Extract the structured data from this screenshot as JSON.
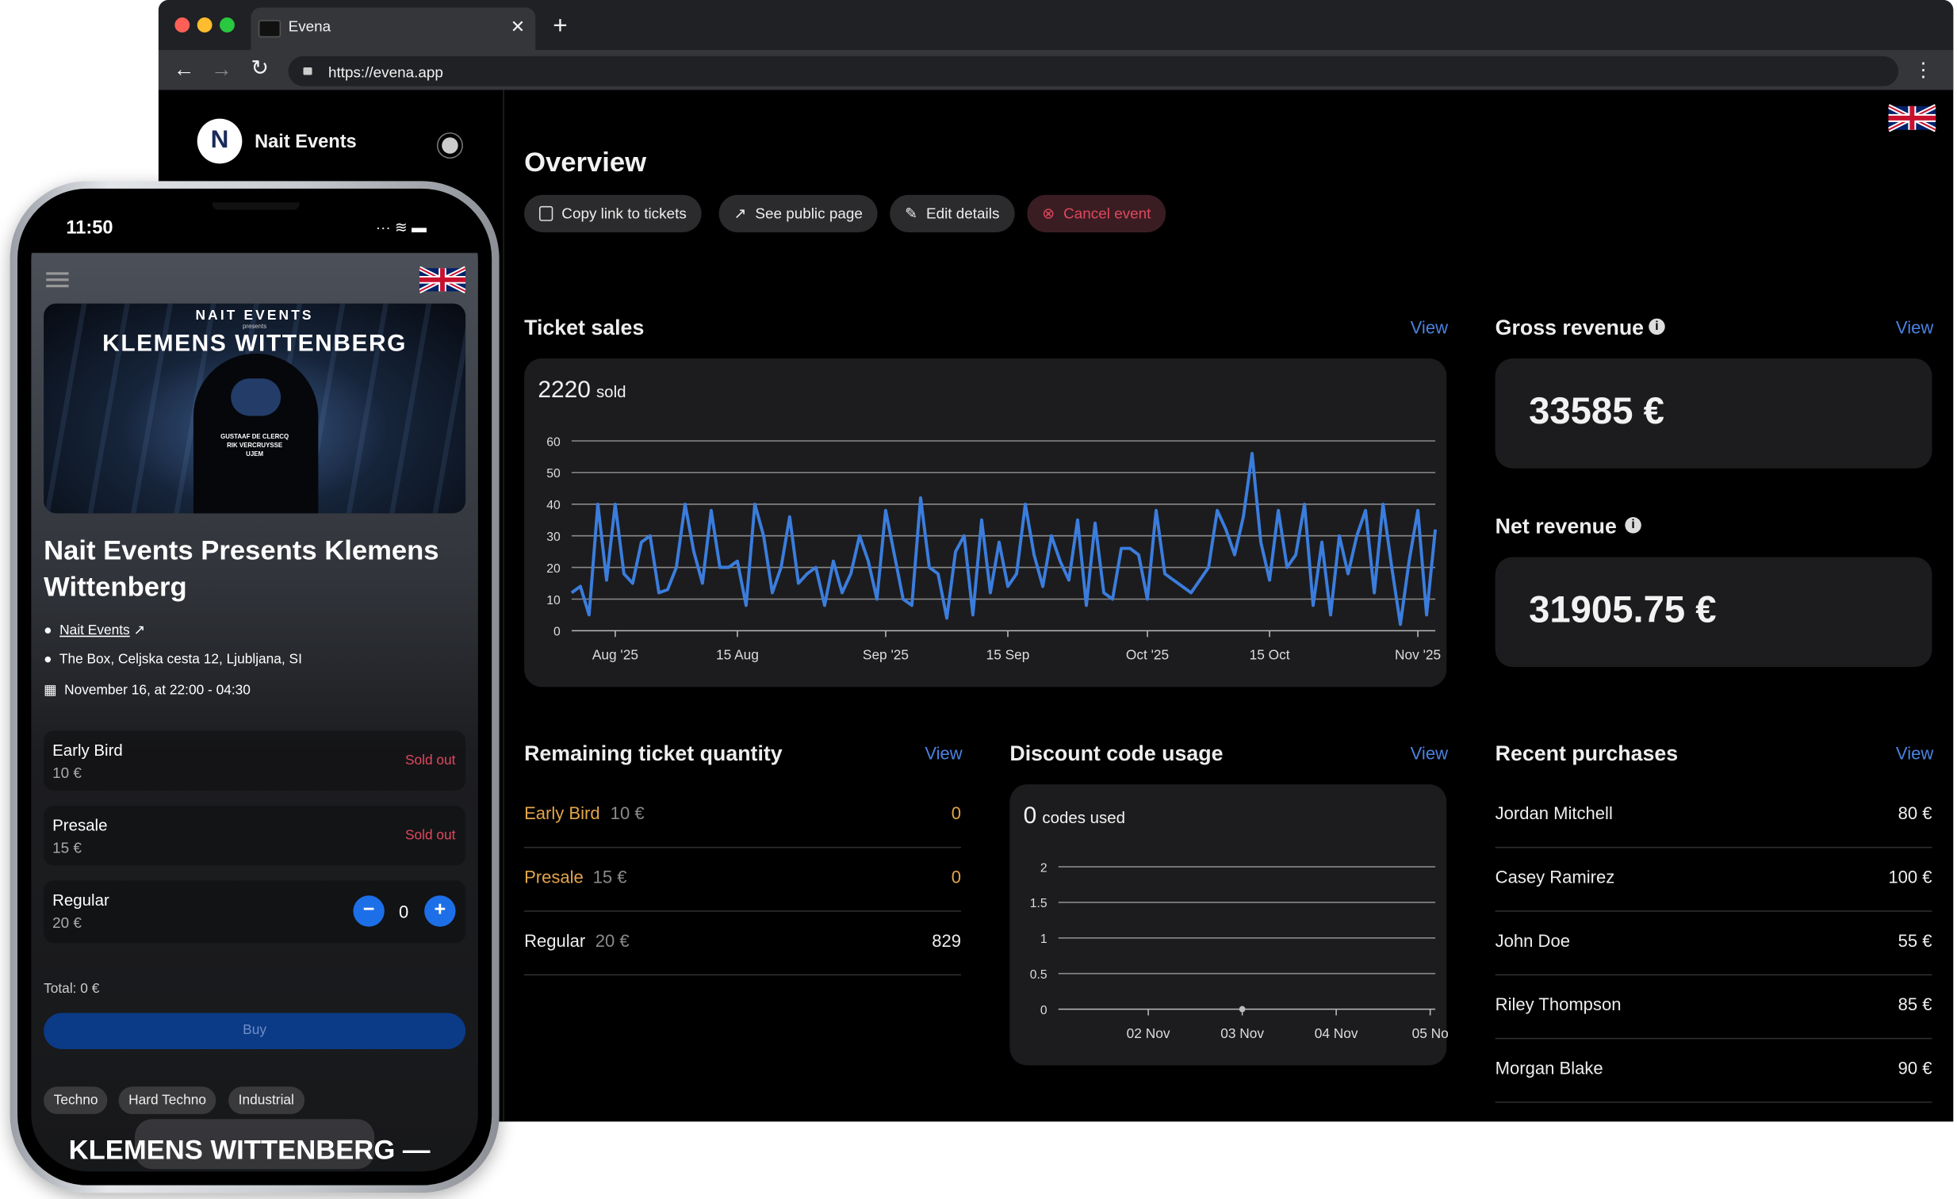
{
  "browser": {
    "tab_title": "Evena",
    "url": "https://evena.app"
  },
  "sidebar": {
    "org_name": "Nait Events"
  },
  "overview": {
    "title": "Overview",
    "actions": [
      "Copy link to tickets",
      "See public page",
      "Edit details",
      "Cancel event"
    ]
  },
  "chart_data": [
    {
      "type": "line",
      "title": "Ticket sales",
      "link": "View",
      "summary_value": 2220,
      "summary_label": "sold",
      "x": [
        "2025-07-27",
        "2025-07-28",
        "2025-07-29",
        "2025-07-30",
        "2025-07-31",
        "2025-08-01",
        "2025-08-02",
        "2025-08-03",
        "2025-08-04",
        "2025-08-05",
        "2025-08-06",
        "2025-08-07",
        "2025-08-08",
        "2025-08-09",
        "2025-08-10",
        "2025-08-11",
        "2025-08-12",
        "2025-08-13",
        "2025-08-14",
        "2025-08-15",
        "2025-08-16",
        "2025-08-17",
        "2025-08-18",
        "2025-08-19",
        "2025-08-20",
        "2025-08-21",
        "2025-08-22",
        "2025-08-23",
        "2025-08-24",
        "2025-08-25",
        "2025-08-26",
        "2025-08-27",
        "2025-08-28",
        "2025-08-29",
        "2025-08-30",
        "2025-08-31",
        "2025-09-01",
        "2025-09-02",
        "2025-09-03",
        "2025-09-04",
        "2025-09-05",
        "2025-09-06",
        "2025-09-07",
        "2025-09-08",
        "2025-09-09",
        "2025-09-10",
        "2025-09-11",
        "2025-09-12",
        "2025-09-13",
        "2025-09-14",
        "2025-09-15",
        "2025-09-16",
        "2025-09-17",
        "2025-09-18",
        "2025-09-19",
        "2025-09-20",
        "2025-09-21",
        "2025-09-22",
        "2025-09-23",
        "2025-09-24",
        "2025-09-25",
        "2025-09-26",
        "2025-09-27",
        "2025-09-28",
        "2025-09-29",
        "2025-09-30",
        "2025-10-01",
        "2025-10-02",
        "2025-10-03",
        "2025-10-04",
        "2025-10-05",
        "2025-10-06",
        "2025-10-07",
        "2025-10-08",
        "2025-10-09",
        "2025-10-10",
        "2025-10-11",
        "2025-10-12",
        "2025-10-13",
        "2025-10-14",
        "2025-10-15",
        "2025-10-16",
        "2025-10-17",
        "2025-10-18",
        "2025-10-19",
        "2025-10-20",
        "2025-10-21",
        "2025-10-22",
        "2025-10-23",
        "2025-10-24",
        "2025-10-25",
        "2025-10-26",
        "2025-10-27",
        "2025-10-28",
        "2025-10-29",
        "2025-10-30",
        "2025-10-31",
        "2025-11-01",
        "2025-11-02",
        "2025-11-03"
      ],
      "series": [
        {
          "color": "#3b7ddd",
          "values": [
            12,
            14,
            5,
            40,
            16,
            40,
            18,
            15,
            28,
            30,
            12,
            13,
            20,
            40,
            25,
            15,
            38,
            20,
            20,
            22,
            8,
            40,
            30,
            12,
            20,
            36,
            15,
            18,
            20,
            8,
            22,
            12,
            18,
            30,
            22,
            10,
            38,
            24,
            10,
            8,
            42,
            20,
            18,
            4,
            25,
            30,
            5,
            35,
            12,
            28,
            14,
            18,
            40,
            24,
            14,
            30,
            22,
            16,
            35,
            8,
            34,
            12,
            10,
            26,
            26,
            24,
            10,
            38,
            18,
            16,
            14,
            12,
            16,
            20,
            38,
            32,
            24,
            36,
            56,
            28,
            16,
            38,
            20,
            24,
            40,
            8,
            28,
            5,
            30,
            18,
            30,
            38,
            12,
            40,
            20,
            2,
            22,
            38,
            5,
            32
          ]
        }
      ],
      "xlim": [
        "2025-07-27",
        "2025-11-03"
      ],
      "xticks": [
        {
          "value": "2025-08-01",
          "label": "Aug '25"
        },
        {
          "value": "2025-08-15",
          "label": "15 Aug"
        },
        {
          "value": "2025-09-01",
          "label": "Sep '25"
        },
        {
          "value": "2025-09-15",
          "label": "15 Sep"
        },
        {
          "value": "2025-10-01",
          "label": "Oct '25"
        },
        {
          "value": "2025-10-15",
          "label": "15 Oct"
        },
        {
          "value": "2025-11-01",
          "label": "Nov '25"
        }
      ],
      "ylim": [
        0,
        60
      ],
      "yticks": [
        0,
        10,
        20,
        30,
        40,
        50,
        60
      ],
      "grid": true
    },
    {
      "type": "line",
      "title": "Discount code usage",
      "link": "View",
      "summary_value": 0,
      "summary_label": "codes used",
      "categories": [
        "02 Nov",
        "03 Nov",
        "04 Nov",
        "05 No"
      ],
      "series": [
        {
          "color": "#bbbbbb",
          "values": [
            null,
            0,
            null,
            null
          ]
        }
      ],
      "ylim": [
        0,
        2
      ],
      "yticks": [
        0,
        0.5,
        1,
        1.5,
        2
      ],
      "grid": true
    }
  ],
  "gross_revenue": {
    "title": "Gross revenue",
    "link": "View",
    "value": "33585 €"
  },
  "net_revenue": {
    "title": "Net revenue",
    "value": "31905.75 €"
  },
  "remaining": {
    "title": "Remaining ticket quantity",
    "link": "View",
    "rows": [
      {
        "name": "Early Bird",
        "price": "10 €",
        "quantity": 0
      },
      {
        "name": "Presale",
        "price": "15 €",
        "quantity": 0
      },
      {
        "name": "Regular",
        "price": "20 €",
        "quantity": 829
      }
    ]
  },
  "recent_purchases": {
    "title": "Recent purchases",
    "link": "View",
    "rows": [
      {
        "name": "Jordan Mitchell",
        "amount": "80 €"
      },
      {
        "name": "Casey Ramirez",
        "amount": "100 €"
      },
      {
        "name": "John Doe",
        "amount": "55 €"
      },
      {
        "name": "Riley Thompson",
        "amount": "85 €"
      },
      {
        "name": "Morgan Blake",
        "amount": "90 €"
      }
    ]
  },
  "phone": {
    "time": "11:50",
    "banner": {
      "presenter": "NAIT EVENTS",
      "presents": "presents",
      "headline": "KLEMENS WITTENBERG",
      "lineup": [
        "GUSTAAF DE CLERCQ",
        "RIK VERCRUYSSE",
        "UJEM"
      ]
    },
    "event_title": "Nait Events Presents Klemens Wittenberg",
    "organizer": "Nait Events",
    "location": "The Box, Celjska cesta 12, Ljubljana, SI",
    "date": "November 16, at 22:00 - 04:30",
    "tickets": [
      {
        "name": "Early Bird",
        "price": "10 €",
        "status": "Sold out"
      },
      {
        "name": "Presale",
        "price": "15 €",
        "status": "Sold out"
      },
      {
        "name": "Regular",
        "price": "20 €",
        "quantity": 0
      }
    ],
    "total": "Total: 0 €",
    "buy": "Buy",
    "tags": [
      "Techno",
      "Hard Techno",
      "Industrial"
    ],
    "marquee": "KLEMENS WITTENBERG —"
  }
}
